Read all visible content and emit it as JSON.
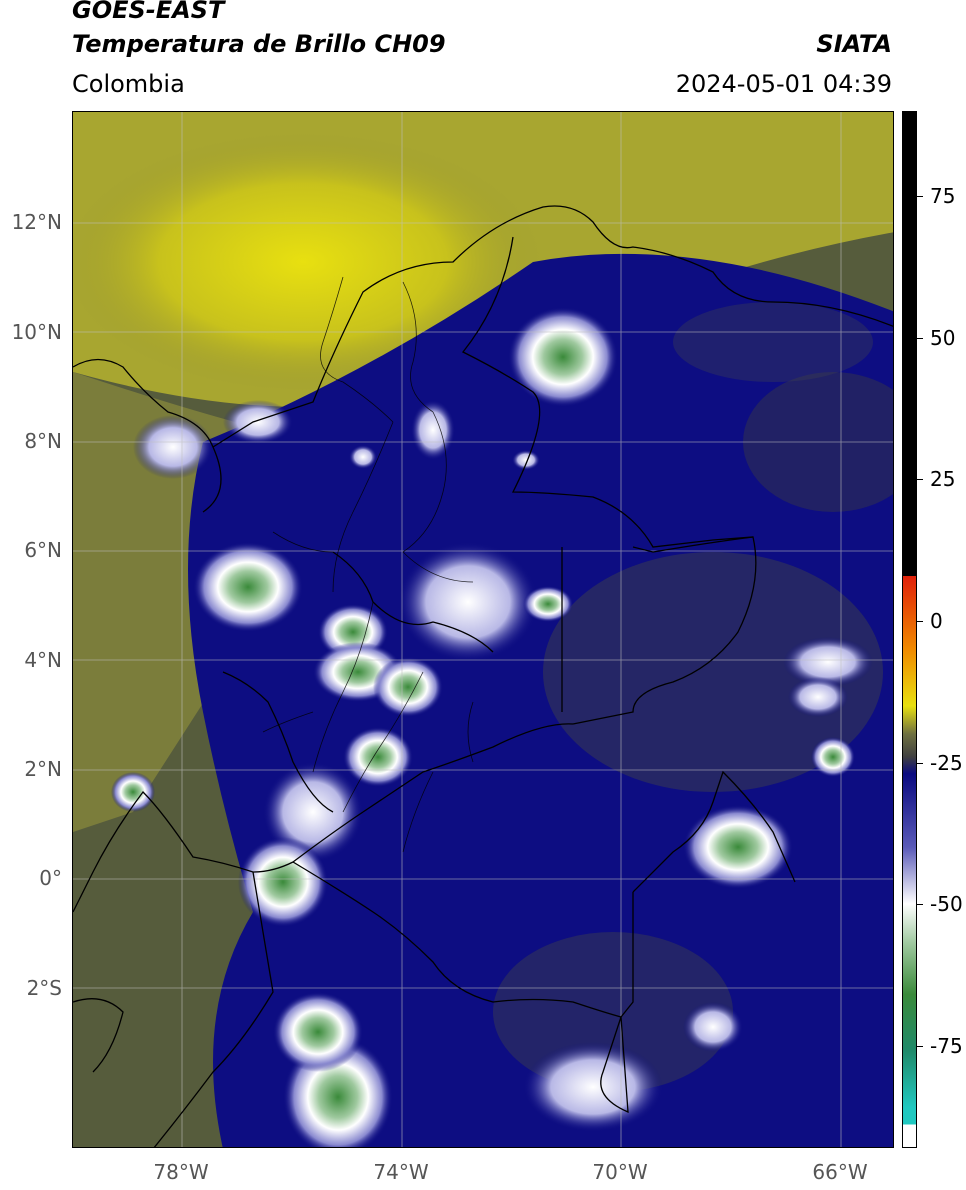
{
  "header": {
    "satellite": "GOES-EAST",
    "product": "Temperatura de Brillo CH09",
    "region": "Colombia",
    "organization": "SIATA",
    "timestamp": "2024-05-01 04:39"
  },
  "map": {
    "lat_labels": [
      "12°N",
      "10°N",
      "8°N",
      "6°N",
      "4°N",
      "2°N",
      "0°",
      "2°S"
    ],
    "lon_labels": [
      "78°W",
      "74°W",
      "70°W",
      "66°W"
    ],
    "extent": {
      "lon_min": -80,
      "lon_max": -65,
      "lat_min": -5,
      "lat_max": 14
    },
    "gridlines": true
  },
  "colorbar": {
    "tick_labels": [
      "75",
      "50",
      "25",
      "0",
      "-25",
      "-50",
      "-75"
    ],
    "tick_values": [
      75,
      50,
      25,
      0,
      -25,
      -50,
      -75
    ],
    "range": [
      -93,
      90
    ],
    "colors": {
      "warm_max": "#000000",
      "red": "#e0200a",
      "orange": "#f08a00",
      "yellow": "#e8e010",
      "olive": "#6e7040",
      "gray": "#404040",
      "navy": "#0a0a80",
      "white": "#ffffff",
      "green": "#3a8a3a",
      "teal": "#20c8c0"
    }
  }
}
